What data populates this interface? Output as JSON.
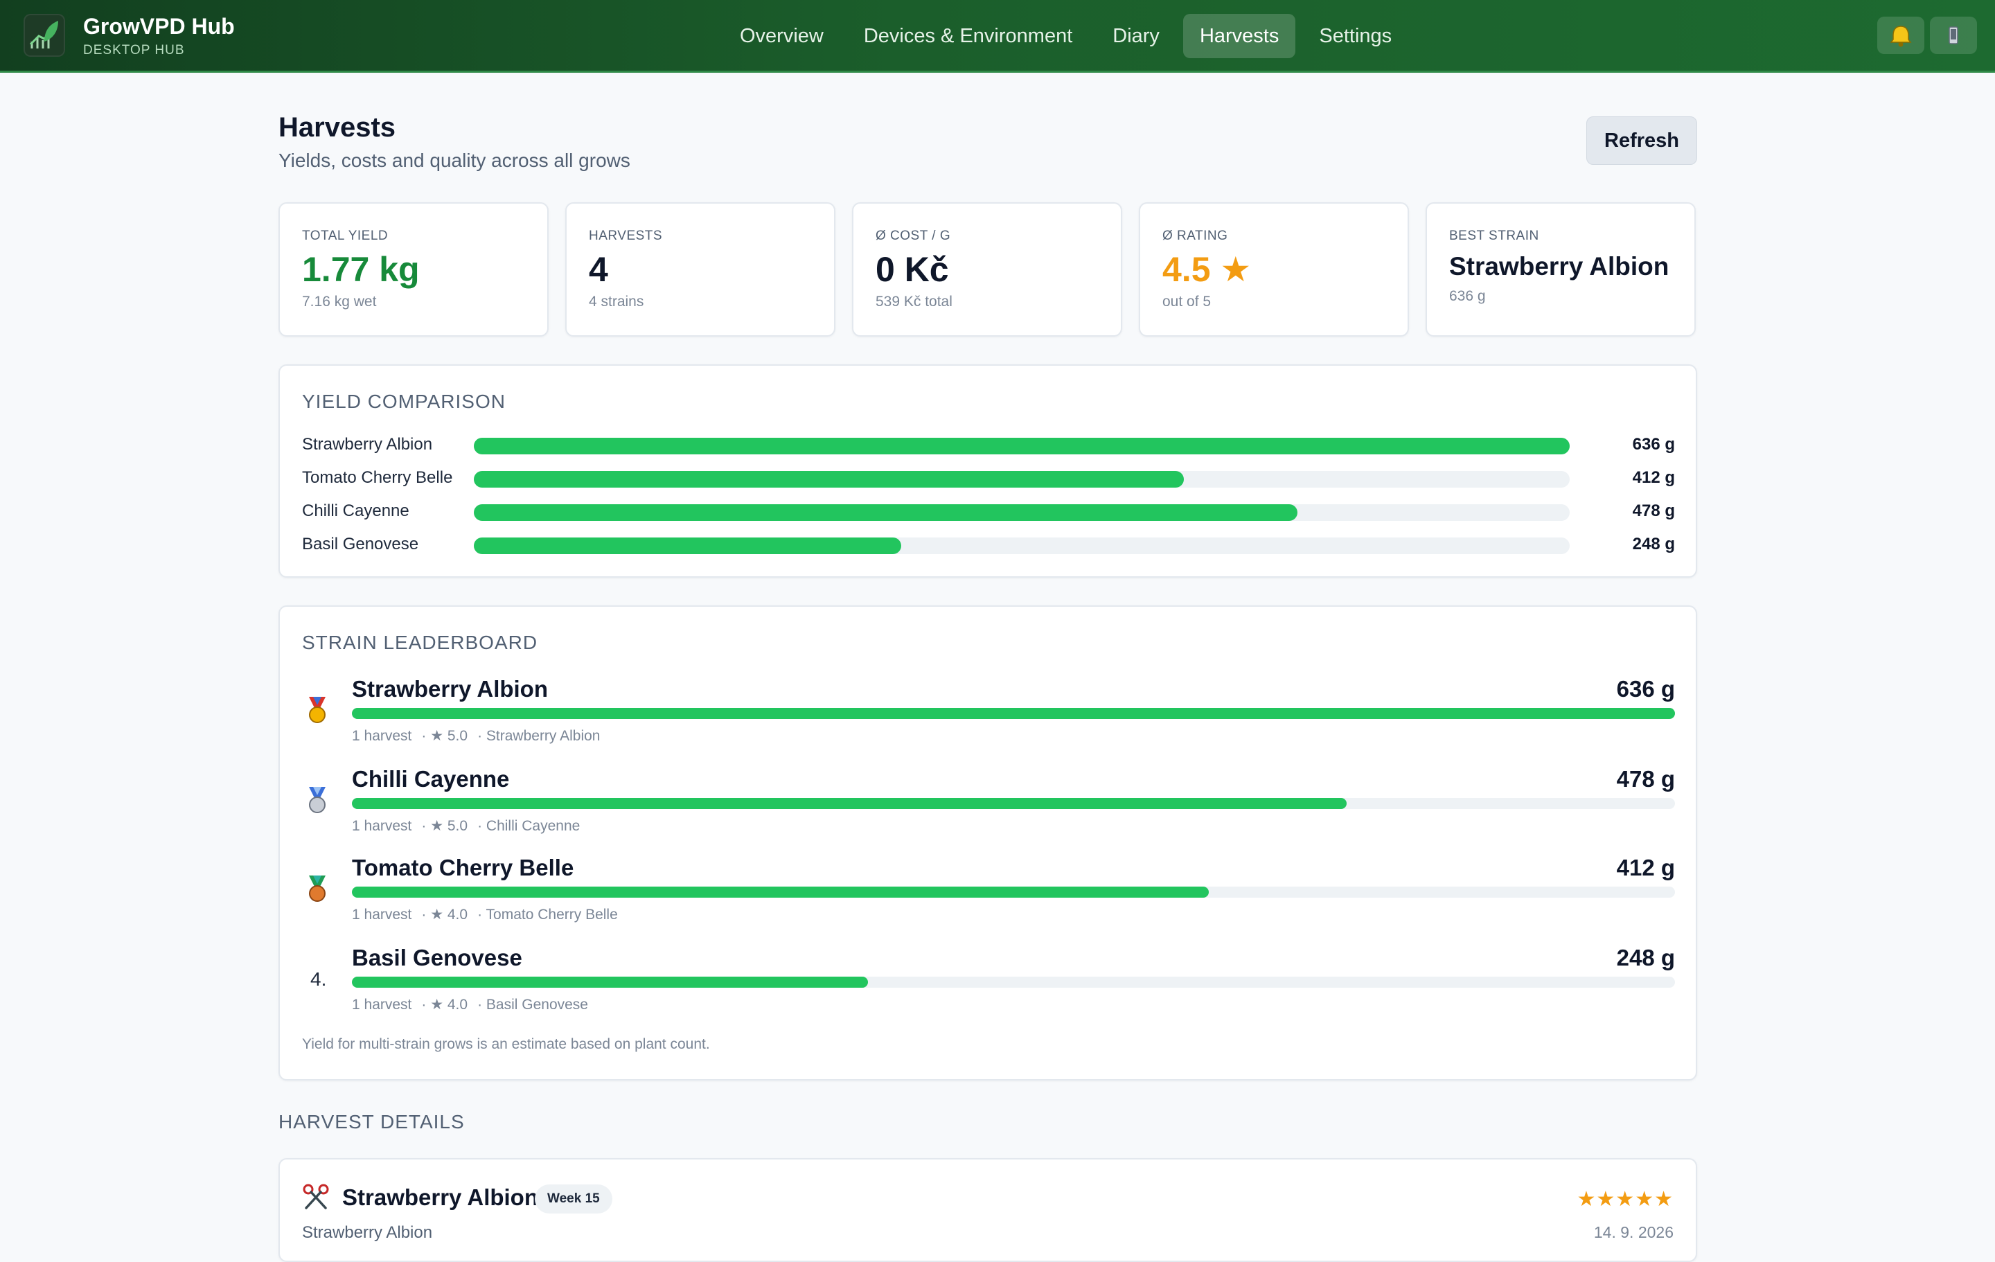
{
  "app": {
    "name": "GrowVPD Hub",
    "subtitle": "DESKTOP HUB"
  },
  "nav": {
    "items": [
      "Overview",
      "Devices & Environment",
      "Diary",
      "Harvests",
      "Settings"
    ],
    "active": "Harvests"
  },
  "header_icons": [
    "bell-icon",
    "phone-icon"
  ],
  "page": {
    "title": "Harvests",
    "subtitle": "Yields, costs and quality across all grows",
    "refresh_label": "Refresh"
  },
  "stats": [
    {
      "label": "TOTAL YIELD",
      "value": "1.77 kg",
      "sub": "7.16 kg wet",
      "accent": "#178a3a"
    },
    {
      "label": "HARVESTS",
      "value": "4",
      "sub": "4 strains"
    },
    {
      "label": "Ø COST / G",
      "value": "0 Kč",
      "sub": "539 Kč total"
    },
    {
      "label": "Ø RATING",
      "value": "4.5 ★",
      "sub": "out of 5",
      "accent": "#f39c12"
    },
    {
      "label": "BEST STRAIN",
      "value": "Strawberry Albion",
      "sub": "636 g"
    }
  ],
  "yield_comparison": {
    "title": "YIELD COMPARISON",
    "max_g": 636,
    "rows": [
      {
        "name": "Strawberry Albion",
        "grams": 636,
        "label": "636 g"
      },
      {
        "name": "Tomato Cherry Belle",
        "grams": 412,
        "label": "412 g"
      },
      {
        "name": "Chilli Cayenne",
        "grams": 478,
        "label": "478 g"
      },
      {
        "name": "Basil Genovese",
        "grams": 248,
        "label": "248 g"
      }
    ]
  },
  "leaderboard": {
    "title": "STRAIN LEADERBOARD",
    "max_g": 636,
    "rows": [
      {
        "medal": "gold-medal-icon",
        "rank": "",
        "name": "Strawberry Albion",
        "grams": 636,
        "label": "636 g",
        "harvests": "1 harvest",
        "rating": "· ★ 5.0",
        "strain": "· Strawberry Albion"
      },
      {
        "medal": "silver-medal-icon",
        "rank": "",
        "name": "Chilli Cayenne",
        "grams": 478,
        "label": "478 g",
        "harvests": "1 harvest",
        "rating": "· ★ 5.0",
        "strain": "· Chilli Cayenne"
      },
      {
        "medal": "bronze-medal-icon",
        "rank": "",
        "name": "Tomato Cherry Belle",
        "grams": 412,
        "label": "412 g",
        "harvests": "1 harvest",
        "rating": "· ★ 4.0",
        "strain": "· Tomato Cherry Belle"
      },
      {
        "medal": "",
        "rank": "4.",
        "name": "Basil Genovese",
        "grams": 248,
        "label": "248 g",
        "harvests": "1 harvest",
        "rating": "· ★ 4.0",
        "strain": "· Basil Genovese"
      }
    ],
    "note": "Yield for multi-strain grows is an estimate based on plant count."
  },
  "harvest_details": {
    "title": "HARVEST DETAILS",
    "items": [
      {
        "icon": "scissors-icon",
        "name": "Strawberry Albion",
        "badge": "Week 15",
        "strain": "Strawberry Albion",
        "stars": "★★★★★",
        "rating": 5,
        "date": "14. 9. 2026"
      }
    ]
  },
  "colors": {
    "bar": "#22c55e",
    "track": "#eef2f5",
    "accent_green": "#178a3a",
    "accent_amber": "#f39c12",
    "nav_bg": "#1b5e2b"
  }
}
